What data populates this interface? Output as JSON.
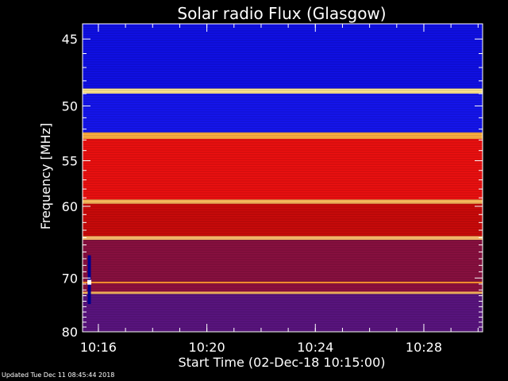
{
  "chart_data": {
    "type": "heatmap",
    "title": "Solar radio Flux (Glasgow)",
    "xlabel": "Start Time (02-Dec-18 10:15:00)",
    "ylabel": "Frequency [MHz]",
    "x_unit": "time (HH:MM)",
    "xlim": [
      "10:15:25",
      "10:30:10"
    ],
    "ylim": [
      44,
      80
    ],
    "x_ticks": [
      "10:16",
      "10:20",
      "10:24",
      "10:28"
    ],
    "y_ticks": [
      45,
      50,
      55,
      60,
      70,
      80
    ],
    "y_scale": "frequency axis, spacing widens toward lower frequencies",
    "colormap": "blue (low) - red - yellow/white (high)",
    "bands": [
      {
        "from_mhz": 44.0,
        "to_mhz": 48.6,
        "level": "low",
        "color": "#1010e8"
      },
      {
        "from_mhz": 48.6,
        "to_mhz": 49.0,
        "level": "very high",
        "color": "#ffe890"
      },
      {
        "from_mhz": 49.0,
        "to_mhz": 52.3,
        "level": "low",
        "color": "#1515f0"
      },
      {
        "from_mhz": 52.3,
        "to_mhz": 52.9,
        "level": "high",
        "color": "#ffb040"
      },
      {
        "from_mhz": 52.9,
        "to_mhz": 59.2,
        "level": "medium-high",
        "color": "#ee1010"
      },
      {
        "from_mhz": 59.2,
        "to_mhz": 59.7,
        "level": "high",
        "color": "#ffc060"
      },
      {
        "from_mhz": 59.7,
        "to_mhz": 63.8,
        "level": "medium",
        "color": "#cc0a0a"
      },
      {
        "from_mhz": 63.8,
        "to_mhz": 64.3,
        "level": "high",
        "color": "#ffc070"
      },
      {
        "from_mhz": 64.3,
        "to_mhz": 70.6,
        "level": "medium-low",
        "color": "#8a1040"
      },
      {
        "from_mhz": 70.6,
        "to_mhz": 70.9,
        "level": "high",
        "color": "#ff9030"
      },
      {
        "from_mhz": 70.9,
        "to_mhz": 72.3,
        "level": "medium-low",
        "color": "#901040"
      },
      {
        "from_mhz": 72.3,
        "to_mhz": 72.7,
        "level": "high",
        "color": "#ffc060"
      },
      {
        "from_mhz": 72.7,
        "to_mhz": 80.0,
        "level": "low-medium",
        "color": "#5a1480"
      }
    ],
    "annotations": [
      {
        "type": "vertical burst",
        "time": "10:15:40",
        "from_mhz": 66.5,
        "to_mhz": 74.5,
        "color": "#000090"
      },
      {
        "type": "bright spot",
        "time": "10:15:40",
        "mhz": 70.7,
        "color": "#ffffff"
      }
    ]
  },
  "footer": {
    "updated": "Updated Tue Dec 11 08:45:44 2018"
  }
}
